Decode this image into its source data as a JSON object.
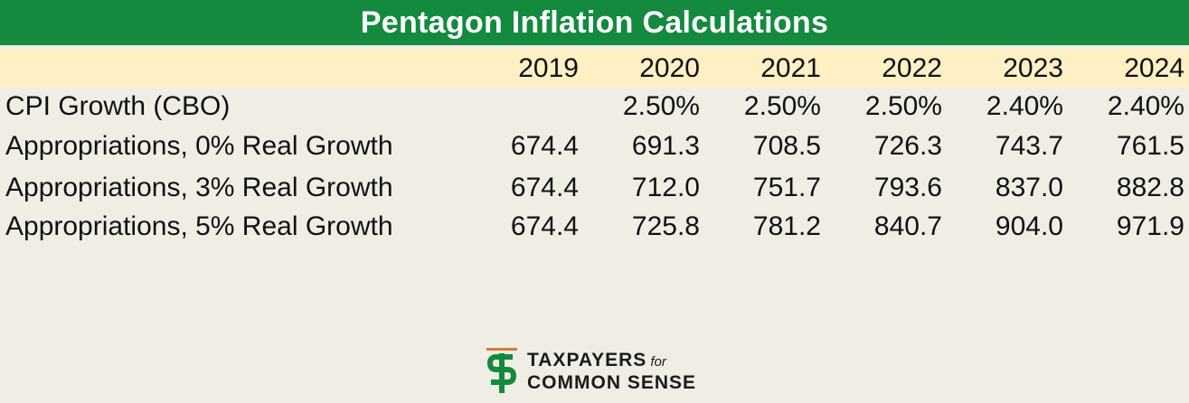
{
  "chart_data": {
    "type": "table",
    "title": "Pentagon Inflation Calculations",
    "columns": [
      "2019",
      "2020",
      "2021",
      "2022",
      "2023",
      "2024"
    ],
    "rows": [
      {
        "label": "CPI Growth (CBO)",
        "values": [
          "",
          "2.50%",
          "2.50%",
          "2.50%",
          "2.40%",
          "2.40%"
        ]
      },
      {
        "label": "Appropriations, 0% Real Growth",
        "values": [
          "674.4",
          "691.3",
          "708.5",
          "726.3",
          "743.7",
          "761.5"
        ]
      },
      {
        "label": "Appropriations, 3% Real Growth",
        "values": [
          "674.4",
          "712.0",
          "751.7",
          "793.6",
          "837.0",
          "882.8"
        ]
      },
      {
        "label": "Appropriations, 5% Real Growth",
        "values": [
          "674.4",
          "725.8",
          "781.2",
          "840.7",
          "904.0",
          "971.9"
        ]
      }
    ]
  },
  "colors": {
    "title_bar": "#138a3e",
    "header_row": "#fcf0c4",
    "background": "#f0ede4",
    "logo_green": "#138a3e",
    "logo_orange": "#d9793a"
  },
  "logo": {
    "icon": "tcs-logo-icon",
    "line1": "TAXPAYERS",
    "for": "for",
    "line2": "COMMON SENSE"
  }
}
